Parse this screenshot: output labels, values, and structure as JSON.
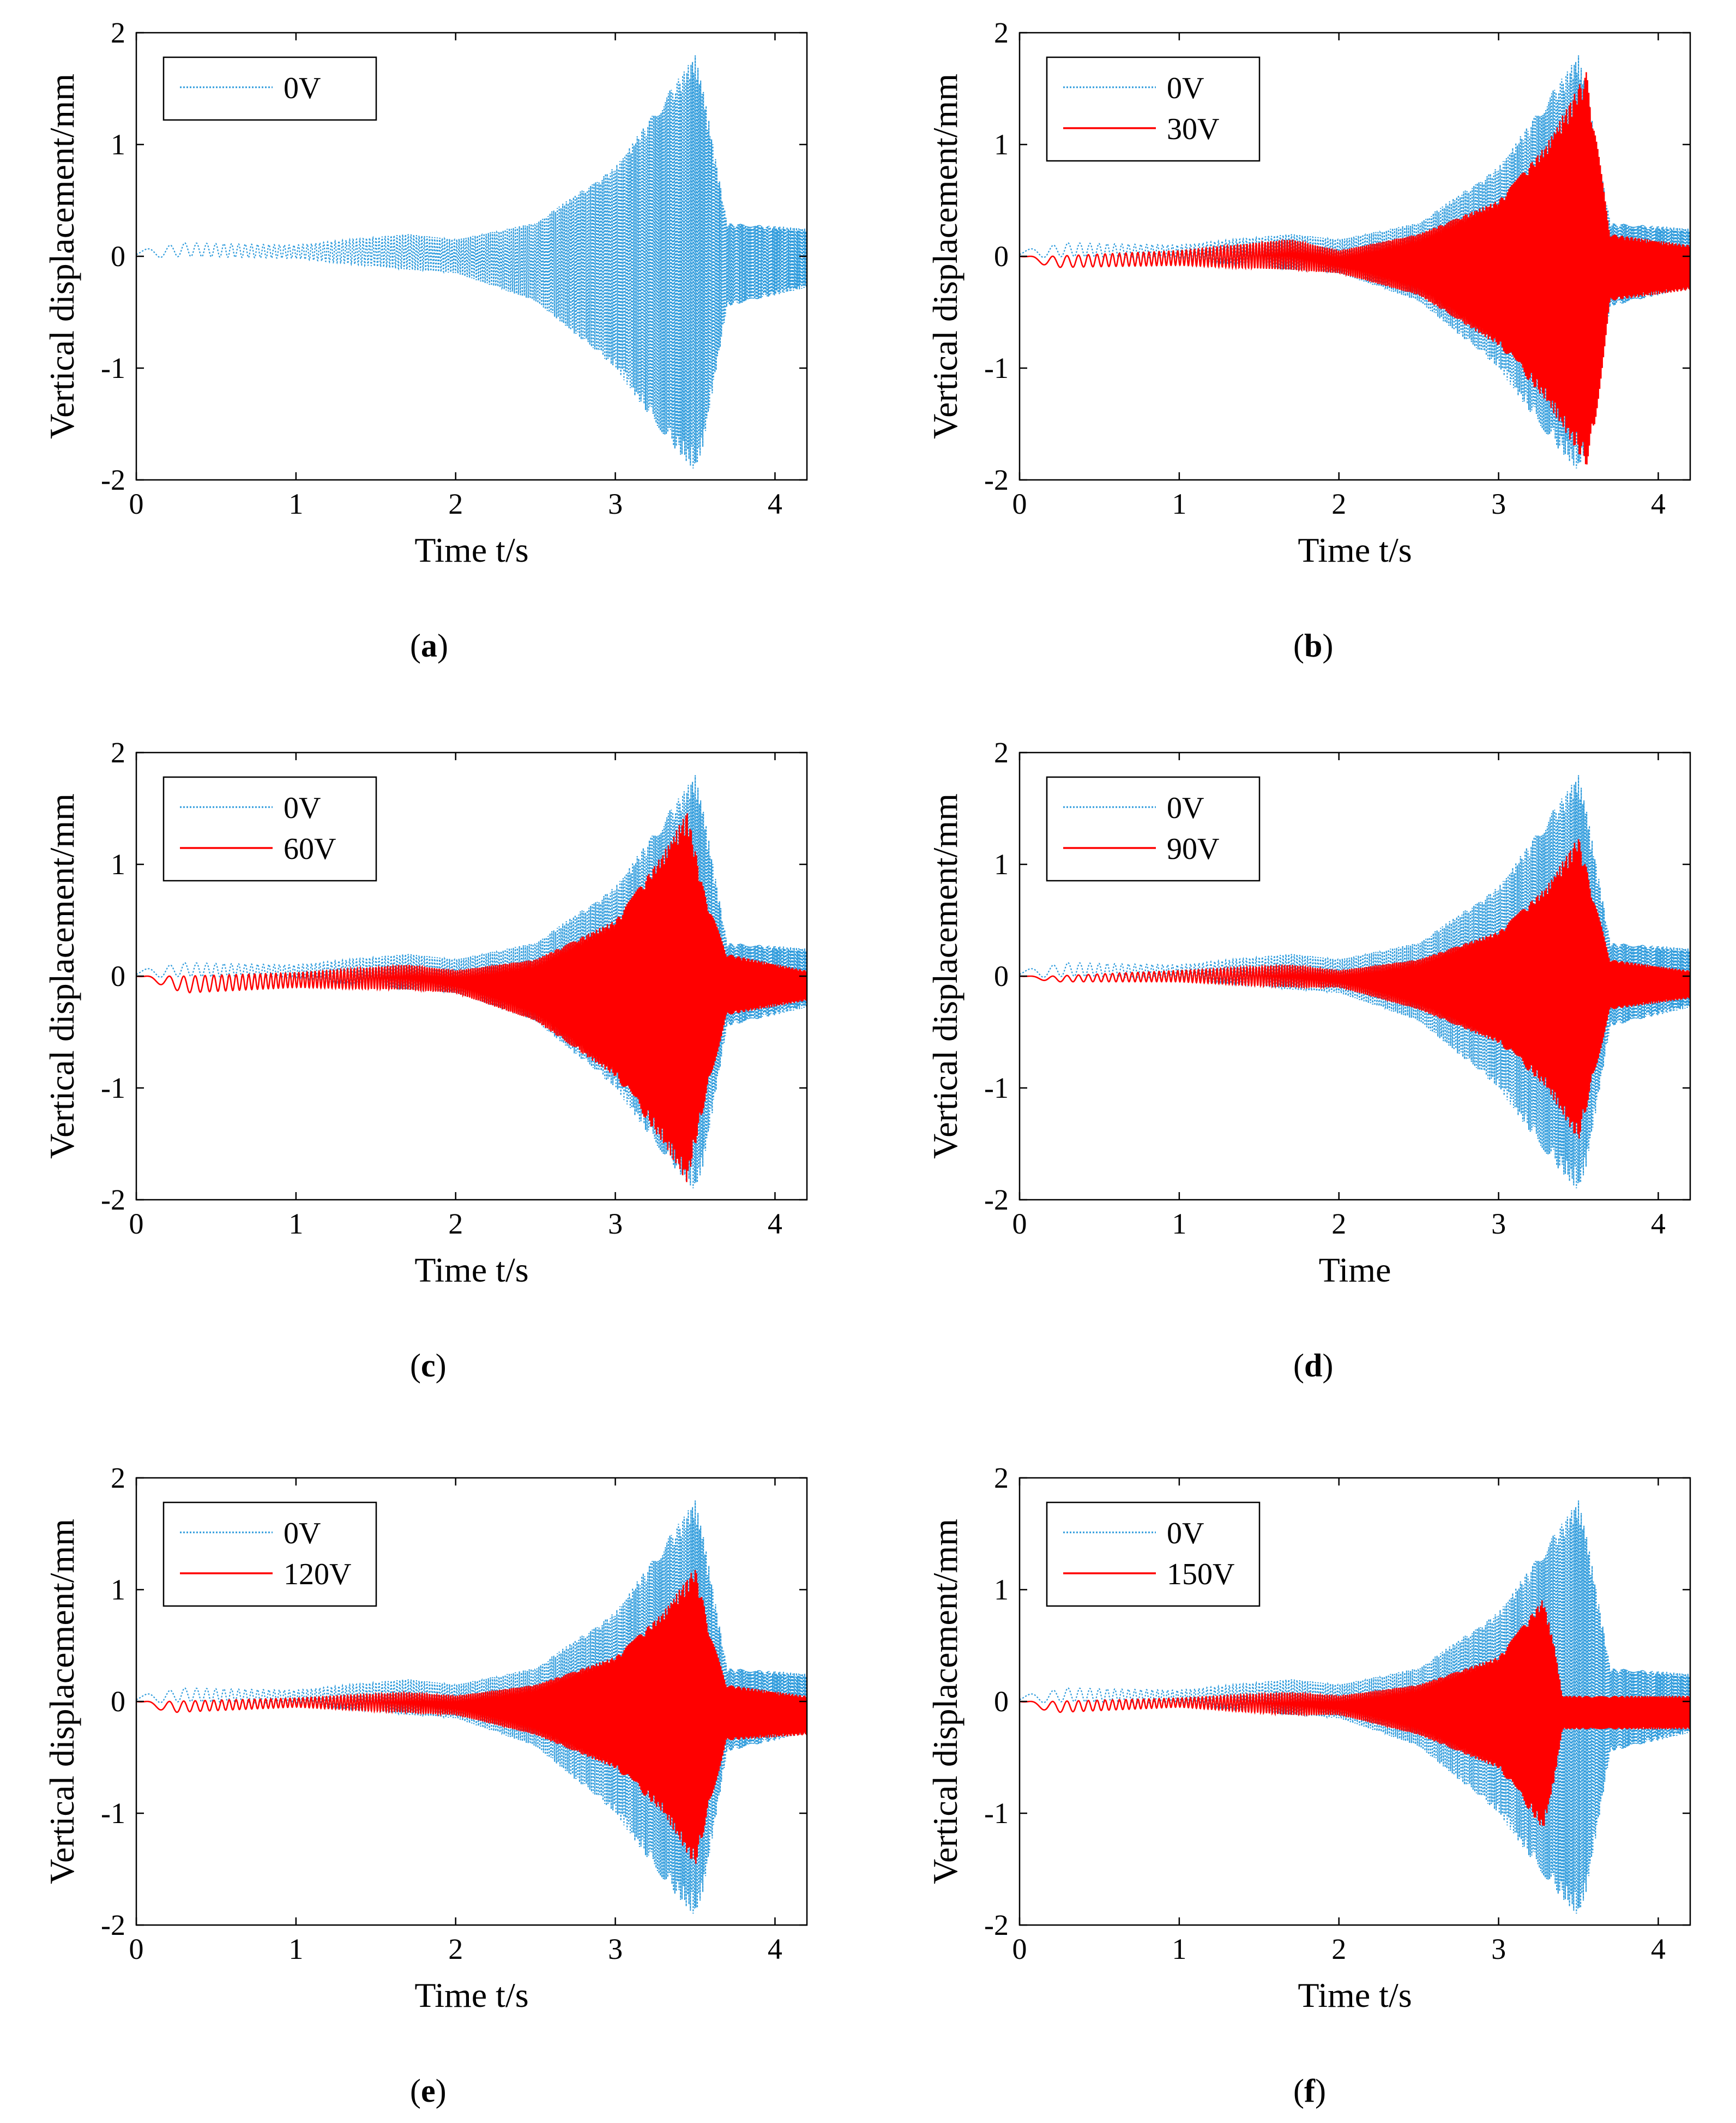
{
  "colors": {
    "baseline": "#2e9bdc",
    "controlled": "#ff0000",
    "axis": "#000000"
  },
  "chart_data": [
    {
      "panel": "a",
      "type": "line",
      "xlabel": "Time t/s",
      "ylabel": "Vertical displacement/mm",
      "xlim": [
        0,
        4.2
      ],
      "ylim": [
        -2,
        2
      ],
      "xticks": [
        "0",
        "1",
        "2",
        "3",
        "4"
      ],
      "yticks": [
        "-2",
        "-1",
        "0",
        "1",
        "2"
      ],
      "legend_placement": "top-left",
      "grid": false,
      "series": [
        {
          "name": "0V",
          "style": "dotted",
          "color": "baseline",
          "envelope": {
            "t": [
              0,
              0.3,
              1.0,
              1.7,
              2.0,
              2.5,
              3.0,
              3.3,
              3.5,
              3.55,
              3.7,
              4.2
            ],
            "upper": [
              0.05,
              0.12,
              0.1,
              0.2,
              0.15,
              0.3,
              0.8,
              1.4,
              1.8,
              1.5,
              0.3,
              0.25
            ],
            "lower": [
              -0.02,
              0.0,
              -0.02,
              -0.12,
              -0.15,
              -0.4,
              -1.0,
              -1.6,
              -1.93,
              -1.7,
              -0.45,
              -0.28
            ]
          }
        }
      ]
    },
    {
      "panel": "b",
      "type": "line",
      "xlabel": "Time t/s",
      "ylabel": "Vertical displacement/mm",
      "xlim": [
        0,
        4.2
      ],
      "ylim": [
        -2,
        2
      ],
      "xticks": [
        "0",
        "1",
        "2",
        "3",
        "4"
      ],
      "yticks": [
        "-2",
        "-1",
        "0",
        "1",
        "2"
      ],
      "legend_placement": "top-left",
      "grid": false,
      "series": [
        {
          "name": "0V",
          "style": "dotted",
          "color": "baseline",
          "envelope": {
            "t": [
              0,
              0.3,
              1.0,
              1.7,
              2.0,
              2.5,
              3.0,
              3.3,
              3.5,
              3.55,
              3.7,
              4.2
            ],
            "upper": [
              0.05,
              0.12,
              0.1,
              0.2,
              0.15,
              0.3,
              0.8,
              1.4,
              1.8,
              1.5,
              0.3,
              0.25
            ],
            "lower": [
              -0.02,
              0.0,
              -0.02,
              -0.12,
              -0.15,
              -0.4,
              -1.0,
              -1.6,
              -1.93,
              -1.7,
              -0.45,
              -0.28
            ]
          }
        },
        {
          "name": "30V",
          "style": "solid",
          "color": "controlled",
          "envelope": {
            "t": [
              0,
              0.2,
              1.0,
              1.7,
              2.0,
              2.5,
              3.0,
              3.3,
              3.55,
              3.6,
              3.7,
              4.2
            ],
            "upper": [
              0.0,
              0.0,
              0.05,
              0.15,
              0.05,
              0.2,
              0.5,
              1.0,
              1.65,
              1.2,
              0.2,
              0.1
            ],
            "lower": [
              0.0,
              -0.1,
              -0.08,
              -0.12,
              -0.15,
              -0.35,
              -0.8,
              -1.3,
              -1.88,
              -1.6,
              -0.4,
              -0.3
            ]
          }
        }
      ]
    },
    {
      "panel": "c",
      "type": "line",
      "xlabel": "Time t/s",
      "ylabel": "Vertical displacement/mm",
      "xlim": [
        0,
        4.2
      ],
      "ylim": [
        -2,
        2
      ],
      "xticks": [
        "0",
        "1",
        "2",
        "3",
        "4"
      ],
      "yticks": [
        "-2",
        "-1",
        "0",
        "1",
        "2"
      ],
      "legend_placement": "top-left",
      "grid": false,
      "series": [
        {
          "name": "0V",
          "style": "dotted",
          "color": "baseline",
          "envelope": {
            "t": [
              0,
              0.3,
              1.0,
              1.7,
              2.0,
              2.5,
              3.0,
              3.3,
              3.5,
              3.55,
              3.7,
              4.2
            ],
            "upper": [
              0.05,
              0.12,
              0.1,
              0.2,
              0.15,
              0.3,
              0.8,
              1.4,
              1.8,
              1.5,
              0.3,
              0.25
            ],
            "lower": [
              -0.02,
              0.0,
              -0.02,
              -0.12,
              -0.15,
              -0.4,
              -1.0,
              -1.6,
              -1.93,
              -1.7,
              -0.45,
              -0.28
            ]
          }
        },
        {
          "name": "60V",
          "style": "solid",
          "color": "controlled",
          "envelope": {
            "t": [
              0,
              0.3,
              1.0,
              1.7,
              2.0,
              2.5,
              3.0,
              3.3,
              3.45,
              3.55,
              3.7,
              4.2
            ],
            "upper": [
              0.0,
              0.0,
              0.03,
              0.1,
              0.05,
              0.15,
              0.5,
              1.1,
              1.48,
              0.8,
              0.2,
              0.05
            ],
            "lower": [
              0.0,
              -0.15,
              -0.1,
              -0.12,
              -0.15,
              -0.4,
              -0.9,
              -1.5,
              -1.85,
              -1.2,
              -0.35,
              -0.22
            ]
          }
        }
      ]
    },
    {
      "panel": "d",
      "type": "line",
      "xlabel": "Time",
      "ylabel": "Vertical displacement/mm",
      "xlim": [
        0,
        4.2
      ],
      "ylim": [
        -2,
        2
      ],
      "xticks": [
        "0",
        "1",
        "2",
        "3",
        "4"
      ],
      "yticks": [
        "-2",
        "-1",
        "0",
        "1",
        "2"
      ],
      "legend_placement": "top-left",
      "grid": false,
      "series": [
        {
          "name": "0V",
          "style": "dotted",
          "color": "baseline",
          "envelope": {
            "t": [
              0,
              0.3,
              1.0,
              1.7,
              2.0,
              2.5,
              3.0,
              3.3,
              3.5,
              3.55,
              3.7,
              4.2
            ],
            "upper": [
              0.05,
              0.12,
              0.1,
              0.2,
              0.15,
              0.3,
              0.8,
              1.4,
              1.8,
              1.5,
              0.3,
              0.25
            ],
            "lower": [
              -0.02,
              0.0,
              -0.02,
              -0.12,
              -0.15,
              -0.4,
              -1.0,
              -1.6,
              -1.93,
              -1.7,
              -0.45,
              -0.28
            ]
          }
        },
        {
          "name": "90V",
          "style": "solid",
          "color": "controlled",
          "envelope": {
            "t": [
              0,
              0.2,
              1.0,
              1.7,
              2.0,
              2.5,
              3.0,
              3.3,
              3.5,
              3.6,
              3.7,
              4.2
            ],
            "upper": [
              0.0,
              0.0,
              0.05,
              0.1,
              0.05,
              0.15,
              0.4,
              0.8,
              1.25,
              0.7,
              0.15,
              0.05
            ],
            "lower": [
              0.0,
              -0.05,
              -0.05,
              -0.1,
              -0.1,
              -0.3,
              -0.6,
              -1.0,
              -1.48,
              -0.9,
              -0.3,
              -0.2
            ]
          }
        }
      ]
    },
    {
      "panel": "e",
      "type": "line",
      "xlabel": "Time t/s",
      "ylabel": "Vertical displacement/mm",
      "xlim": [
        0,
        4.2
      ],
      "ylim": [
        -2,
        2
      ],
      "xticks": [
        "0",
        "1",
        "2",
        "3",
        "4"
      ],
      "yticks": [
        "-2",
        "-1",
        "0",
        "1",
        "2"
      ],
      "legend_placement": "top-left",
      "grid": false,
      "series": [
        {
          "name": "0V",
          "style": "dotted",
          "color": "baseline",
          "envelope": {
            "t": [
              0,
              0.3,
              1.0,
              1.7,
              2.0,
              2.5,
              3.0,
              3.3,
              3.5,
              3.55,
              3.7,
              4.2
            ],
            "upper": [
              0.05,
              0.12,
              0.1,
              0.2,
              0.15,
              0.3,
              0.8,
              1.4,
              1.8,
              1.5,
              0.3,
              0.25
            ],
            "lower": [
              -0.02,
              0.0,
              -0.02,
              -0.12,
              -0.15,
              -0.4,
              -1.0,
              -1.6,
              -1.93,
              -1.7,
              -0.45,
              -0.28
            ]
          }
        },
        {
          "name": "120V",
          "style": "solid",
          "color": "controlled",
          "envelope": {
            "t": [
              0,
              0.2,
              1.0,
              1.7,
              2.0,
              2.5,
              3.0,
              3.3,
              3.5,
              3.6,
              3.7,
              4.2
            ],
            "upper": [
              0.0,
              0.0,
              0.03,
              0.08,
              0.05,
              0.15,
              0.4,
              0.8,
              1.2,
              0.6,
              0.15,
              0.05
            ],
            "lower": [
              0.0,
              -0.1,
              -0.05,
              -0.1,
              -0.12,
              -0.3,
              -0.6,
              -1.0,
              -1.48,
              -0.9,
              -0.35,
              -0.3
            ]
          }
        }
      ]
    },
    {
      "panel": "f",
      "type": "line",
      "xlabel": "Time t/s",
      "ylabel": "Vertical displacement/mm",
      "xlim": [
        0,
        4.2
      ],
      "ylim": [
        -2,
        2
      ],
      "xticks": [
        "0",
        "1",
        "2",
        "3",
        "4"
      ],
      "yticks": [
        "-2",
        "-1",
        "0",
        "1",
        "2"
      ],
      "legend_placement": "top-left",
      "grid": false,
      "series": [
        {
          "name": "0V",
          "style": "dotted",
          "color": "baseline",
          "envelope": {
            "t": [
              0,
              0.3,
              1.0,
              1.7,
              2.0,
              2.5,
              3.0,
              3.3,
              3.5,
              3.55,
              3.7,
              4.2
            ],
            "upper": [
              0.05,
              0.12,
              0.1,
              0.2,
              0.15,
              0.3,
              0.8,
              1.4,
              1.8,
              1.5,
              0.3,
              0.25
            ],
            "lower": [
              -0.02,
              0.0,
              -0.02,
              -0.12,
              -0.15,
              -0.4,
              -1.0,
              -1.6,
              -1.93,
              -1.7,
              -0.45,
              -0.28
            ]
          }
        },
        {
          "name": "150V",
          "style": "solid",
          "color": "controlled",
          "envelope": {
            "t": [
              0,
              0.2,
              1.0,
              1.7,
              2.0,
              2.5,
              3.0,
              3.28,
              3.35,
              3.4,
              4.2
            ],
            "upper": [
              0.0,
              0.0,
              0.03,
              0.08,
              0.05,
              0.15,
              0.4,
              0.92,
              0.5,
              0.05,
              0.05
            ],
            "lower": [
              0.0,
              -0.1,
              -0.05,
              -0.12,
              -0.12,
              -0.3,
              -0.6,
              -1.15,
              -0.7,
              -0.25,
              -0.25
            ]
          }
        }
      ]
    }
  ],
  "captions": [
    "a",
    "b",
    "c",
    "d",
    "e",
    "f"
  ]
}
